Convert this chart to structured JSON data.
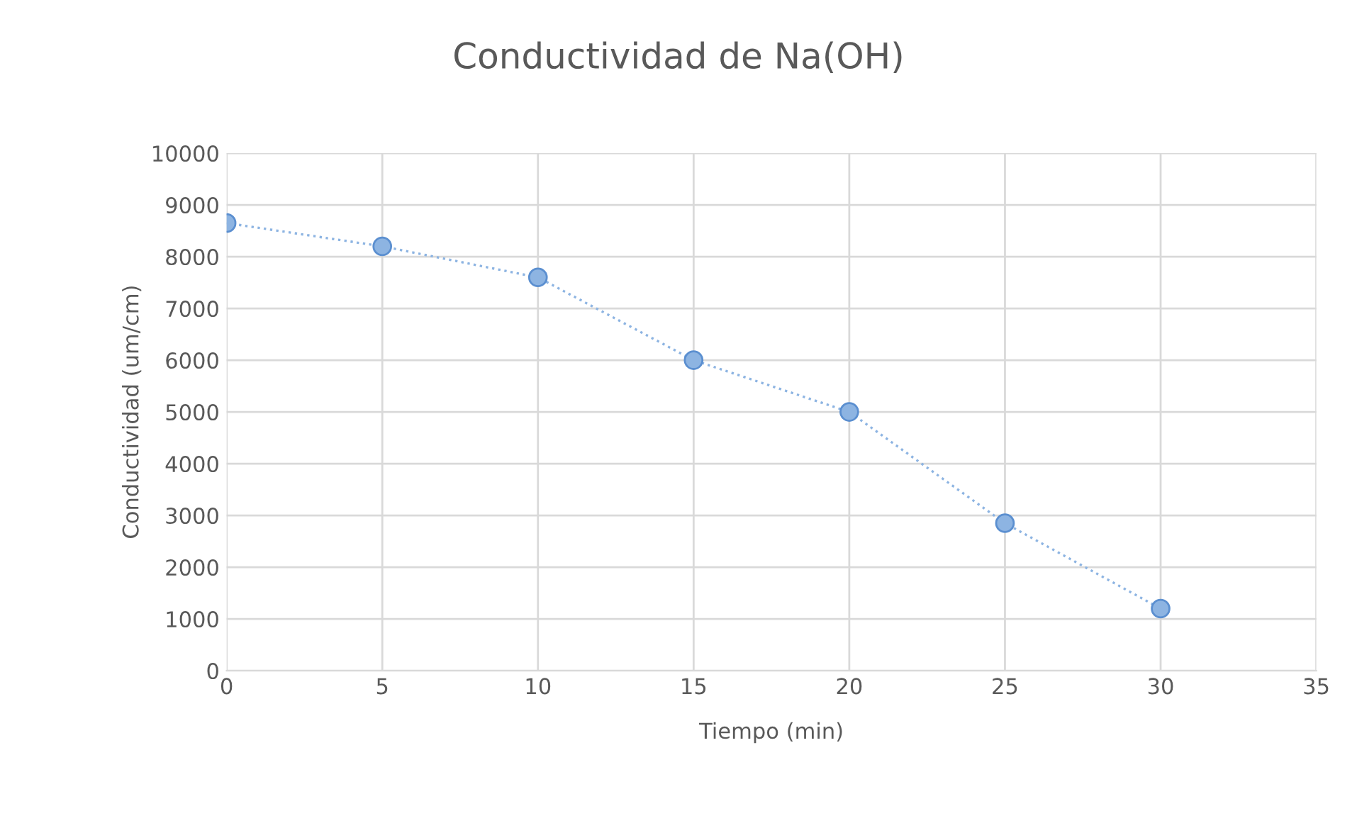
{
  "chart_data": {
    "type": "line",
    "title": "Conductividad de Na(OH)",
    "xlabel": "Tiempo (min)",
    "ylabel": "Conductividad (um/cm)",
    "x": [
      0,
      5,
      10,
      15,
      20,
      25,
      30
    ],
    "series": [
      {
        "color": "#8db4e2",
        "values": [
          8650,
          8200,
          7600,
          6000,
          5000,
          2850,
          1200
        ]
      }
    ],
    "xlim": [
      0,
      35
    ],
    "xticks": [
      0,
      5,
      10,
      15,
      20,
      25,
      30,
      35
    ],
    "ylim": [
      0,
      10000
    ],
    "yticks": [
      0,
      1000,
      2000,
      3000,
      4000,
      5000,
      6000,
      7000,
      8000,
      9000,
      10000
    ],
    "grid": true,
    "marker": "circle",
    "line_style": "dotted"
  }
}
